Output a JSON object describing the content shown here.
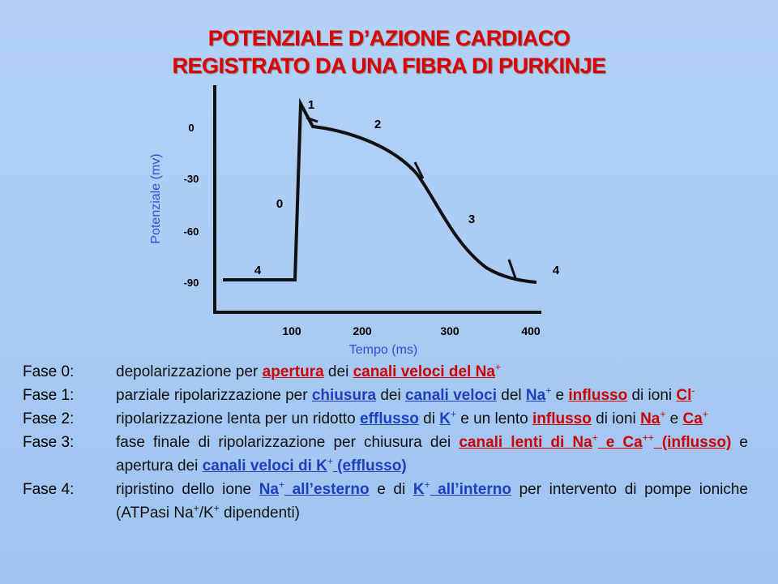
{
  "title": [
    "POTENZIALE D’AZIONE CARDIACO",
    "REGISTRATO DA UNA FIBRA DI PURKINJE"
  ],
  "figure": {
    "y_label": "Potenziale (mv)",
    "x_label": "Tempo (ms)",
    "y_ticks": [
      "0",
      "-30",
      "-60",
      "-90"
    ],
    "x_ticks": [
      "100",
      "200",
      "300",
      "400"
    ],
    "phase_labels": [
      "1",
      "2",
      "0",
      "3",
      "4",
      "4"
    ]
  },
  "phases": [
    {
      "label": "Fase 0:",
      "segments": [
        {
          "text": "depolarizzazione per "
        },
        {
          "text": "apertura",
          "color": "#cc0000"
        },
        {
          "text": " dei "
        },
        {
          "text": "canali veloci del Na",
          "color": "#cc0000"
        },
        {
          "text": "+",
          "color": "#cc0000",
          "sup": true
        }
      ]
    },
    {
      "label": "Fase 1:",
      "segments": [
        {
          "text": "parziale ripolarizzazione per "
        },
        {
          "text": "chiusura",
          "color": "#1f3fbf"
        },
        {
          "text": " dei "
        },
        {
          "text": "canali veloci",
          "color": "#1f3fbf"
        },
        {
          "text": " del "
        },
        {
          "text": "Na",
          "color": "#1f3fbf"
        },
        {
          "text": "+",
          "color": "#1f3fbf",
          "sup": true
        },
        {
          "text": " e "
        },
        {
          "text": "influsso",
          "color": "#cc0000"
        },
        {
          "text": " di ioni "
        },
        {
          "text": "Cl",
          "color": "#cc0000"
        },
        {
          "text": "-",
          "color": "#cc0000",
          "sup": true
        }
      ]
    },
    {
      "label": "Fase 2:",
      "segments": [
        {
          "text": "ripolarizzazione lenta per un ridotto "
        },
        {
          "text": "efflusso",
          "color": "#1f3fbf"
        },
        {
          "text": " di "
        },
        {
          "text": "K",
          "color": "#1f3fbf"
        },
        {
          "text": "+",
          "color": "#1f3fbf",
          "sup": true
        },
        {
          "text": " e un lento "
        },
        {
          "text": "influsso",
          "color": "#cc0000"
        },
        {
          "text": " di ioni "
        },
        {
          "text": "Na",
          "color": "#cc0000"
        },
        {
          "text": "+",
          "color": "#cc0000",
          "sup": true
        },
        {
          "text": " e "
        },
        {
          "text": "Ca",
          "color": "#cc0000"
        },
        {
          "text": "+",
          "color": "#cc0000",
          "sup": true
        }
      ]
    },
    {
      "label": "Fase 3:",
      "segments": [
        {
          "text": "fase finale di ripolarizzazione per chiusura dei "
        },
        {
          "text": "canali lenti di Na",
          "color": "#cc0000"
        },
        {
          "text": "+",
          "color": "#cc0000",
          "sup": true
        },
        {
          "text": " e Ca",
          "color": "#cc0000"
        },
        {
          "text": "++",
          "color": "#cc0000",
          "sup": true
        },
        {
          "text": " (influsso)",
          "color": "#cc0000"
        },
        {
          "text": " e apertura dei "
        },
        {
          "text": "canali veloci di K",
          "color": "#1f3fbf"
        },
        {
          "text": "+",
          "color": "#1f3fbf",
          "sup": true
        },
        {
          "text": " (efflusso)",
          "color": "#1f3fbf"
        }
      ]
    },
    {
      "label": "Fase 4:",
      "segments": [
        {
          "text": "ripristino dello ione "
        },
        {
          "text": "Na",
          "color": "#1f3fbf"
        },
        {
          "text": "+",
          "color": "#1f3fbf",
          "sup": true
        },
        {
          "text": " all’esterno",
          "color": "#1f3fbf"
        },
        {
          "text": " e di "
        },
        {
          "text": "K",
          "color": "#1f3fbf"
        },
        {
          "text": "+",
          "color": "#1f3fbf",
          "sup": true
        },
        {
          "text": " all’interno",
          "color": "#1f3fbf"
        },
        {
          "text": " per intervento di pompe ioniche (ATPasi Na"
        },
        {
          "text": "+",
          "sup": true
        },
        {
          "text": "/K"
        },
        {
          "text": "+",
          "sup": true
        },
        {
          "text": " dipendenti)"
        }
      ]
    }
  ]
}
